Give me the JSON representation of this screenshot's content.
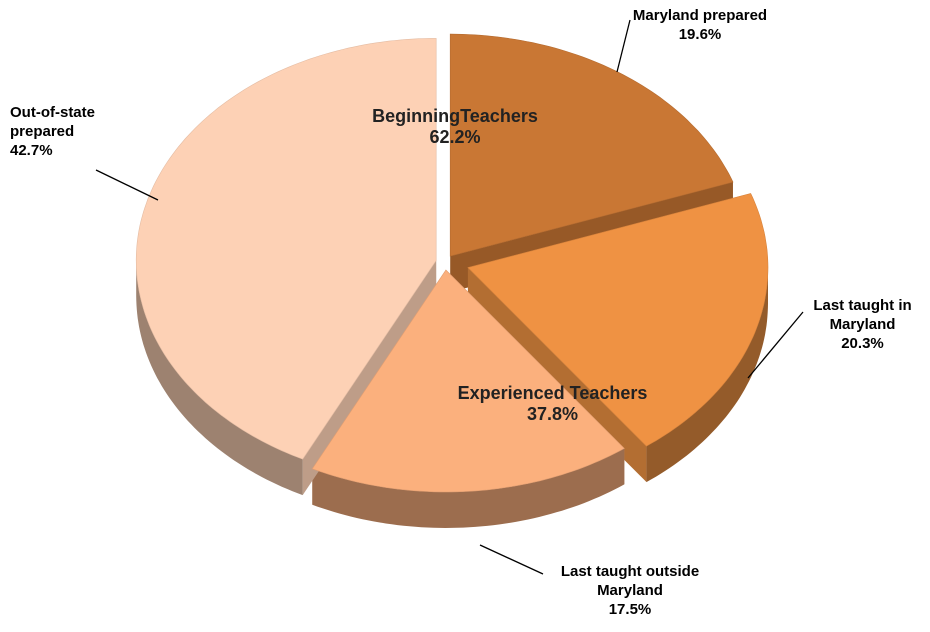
{
  "chart_data": {
    "type": "pie",
    "categories": [
      "Maryland prepared",
      "Last taught in Maryland",
      "Last taught outside Maryland",
      "Out-of-state prepared"
    ],
    "values": [
      19.6,
      20.3,
      17.5,
      42.7
    ],
    "value_labels": [
      "19.6%",
      "20.3%",
      "17.5%",
      "42.7%"
    ],
    "colors": [
      "#c97734",
      "#ef9243",
      "#fbb07d",
      "#fdd1b5"
    ],
    "groups": [
      {
        "name": "BeginningTeachers",
        "value": 62.2,
        "value_label": "62.2%"
      },
      {
        "name": "Experienced Teachers",
        "value": 37.8,
        "value_label": "37.8%"
      }
    ]
  }
}
